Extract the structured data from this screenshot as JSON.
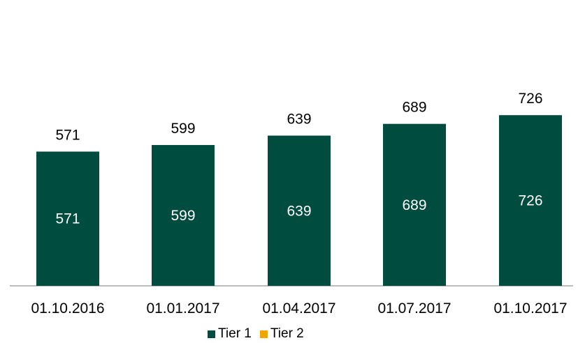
{
  "chart_data": {
    "type": "bar",
    "stacked": true,
    "categories": [
      "01.10.2016",
      "01.01.2017",
      "01.04.2017",
      "01.07.2017",
      "01.10.2017"
    ],
    "series": [
      {
        "name": "Tier 1",
        "values": [
          571,
          599,
          639,
          689,
          726
        ],
        "color": "#004d40"
      },
      {
        "name": "Tier 2",
        "values": [
          0,
          0,
          0,
          0,
          0
        ],
        "color": "#f0a500"
      }
    ],
    "totals": [
      571,
      599,
      639,
      689,
      726
    ],
    "ylim": [
      0,
      800
    ],
    "grid": false,
    "legend_position": "bottom",
    "title": "",
    "xlabel": "",
    "ylabel": ""
  }
}
